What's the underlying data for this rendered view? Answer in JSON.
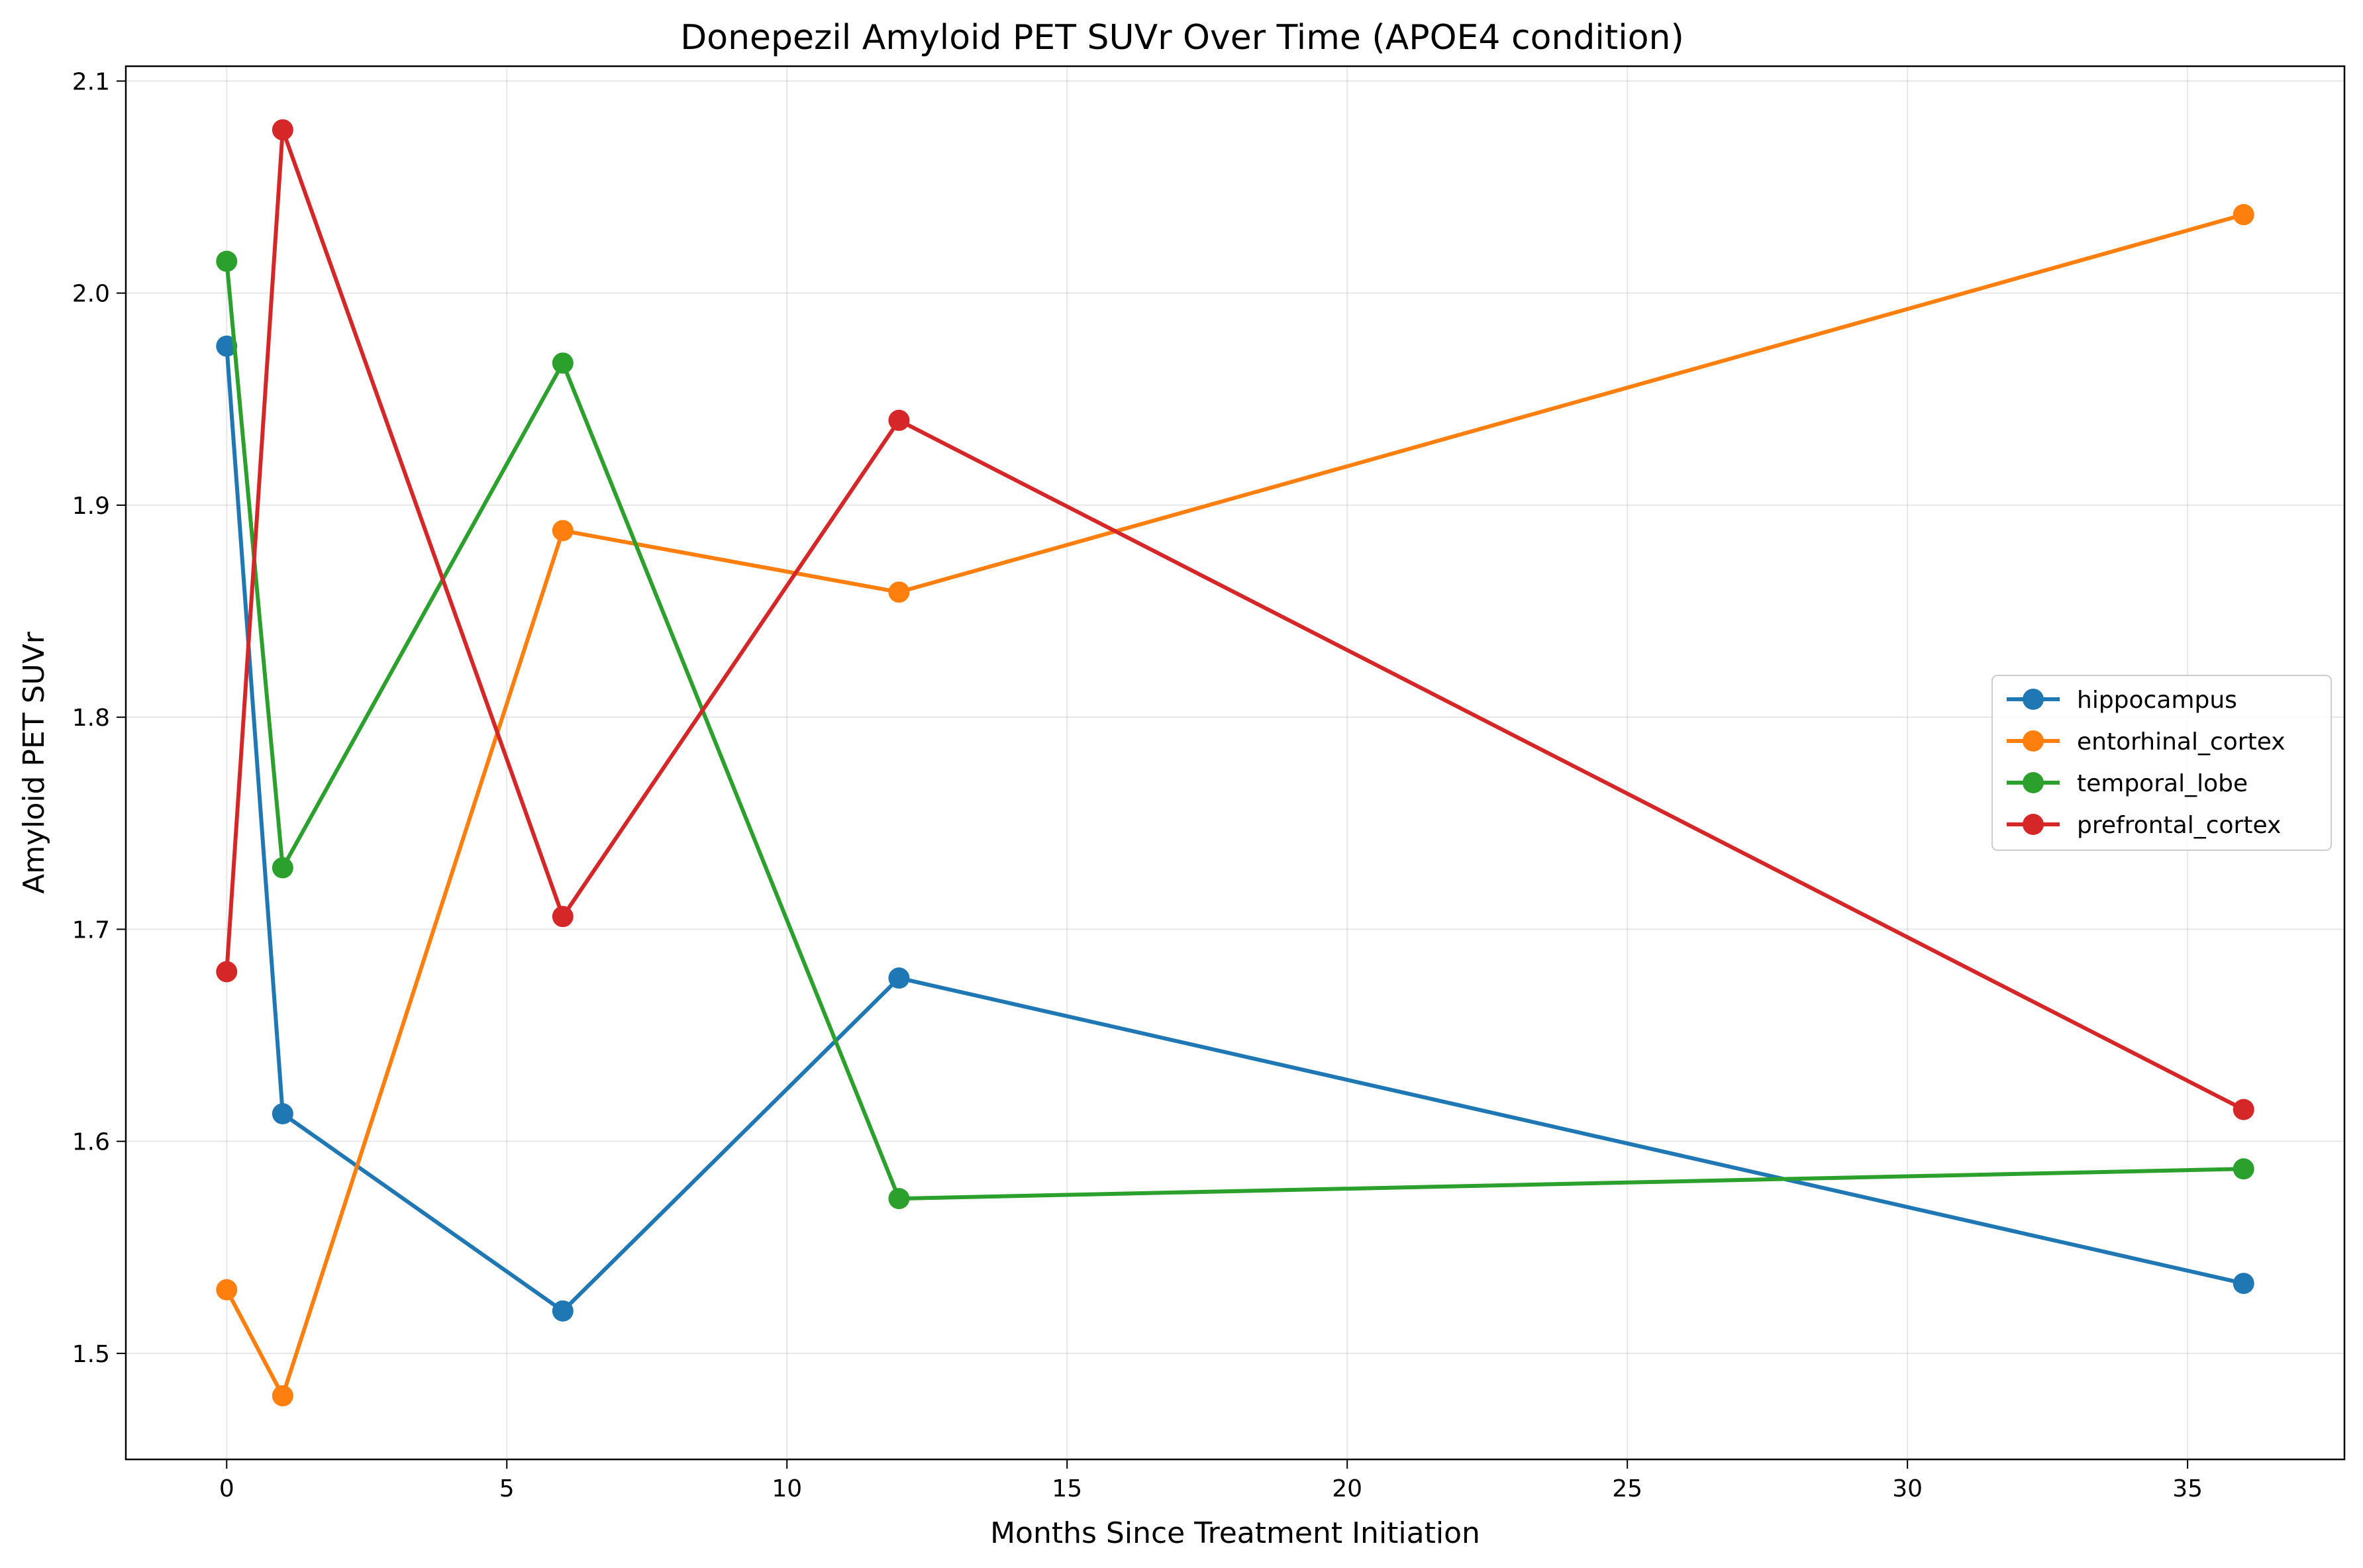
{
  "chart_data": {
    "type": "line",
    "title": "Donepezil Amyloid PET SUVr Over Time (APOE4 condition)",
    "xlabel": "Months Since Treatment Initiation",
    "ylabel": "Amyloid PET SUVr",
    "xlim": [
      -1.8,
      37.8
    ],
    "ylim": [
      1.45,
      2.107
    ],
    "xticks": [
      0,
      5,
      10,
      15,
      20,
      25,
      30,
      35
    ],
    "yticks": [
      1.5,
      1.6,
      1.7,
      1.8,
      1.9,
      2.0,
      2.1
    ],
    "xtick_labels": [
      "0",
      "5",
      "10",
      "15",
      "20",
      "25",
      "30",
      "35"
    ],
    "ytick_labels": [
      "1.5",
      "1.6",
      "1.7",
      "1.8",
      "1.9",
      "2.0",
      "2.1"
    ],
    "grid": true,
    "legend_position": "center-right",
    "x": [
      0,
      1,
      6,
      12,
      36
    ],
    "series": [
      {
        "name": "hippocampus",
        "color": "#1f77b4",
        "values": [
          1.975,
          1.613,
          1.52,
          1.677,
          1.533
        ]
      },
      {
        "name": "entorhinal_cortex",
        "color": "#ff7f0e",
        "values": [
          1.53,
          1.48,
          1.888,
          1.859,
          2.037
        ]
      },
      {
        "name": "temporal_lobe",
        "color": "#2ca02c",
        "values": [
          2.015,
          1.729,
          1.967,
          1.573,
          1.587
        ]
      },
      {
        "name": "prefrontal_cortex",
        "color": "#d62728",
        "values": [
          1.68,
          2.077,
          1.706,
          1.94,
          1.615
        ]
      }
    ]
  }
}
